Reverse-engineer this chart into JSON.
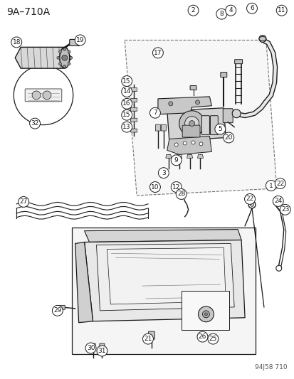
{
  "title": "9A–710A",
  "watermark": "94J58 710",
  "bg_color": "#ffffff",
  "line_color": "#1a1a1a",
  "fig_width": 4.14,
  "fig_height": 5.33,
  "dpi": 100
}
